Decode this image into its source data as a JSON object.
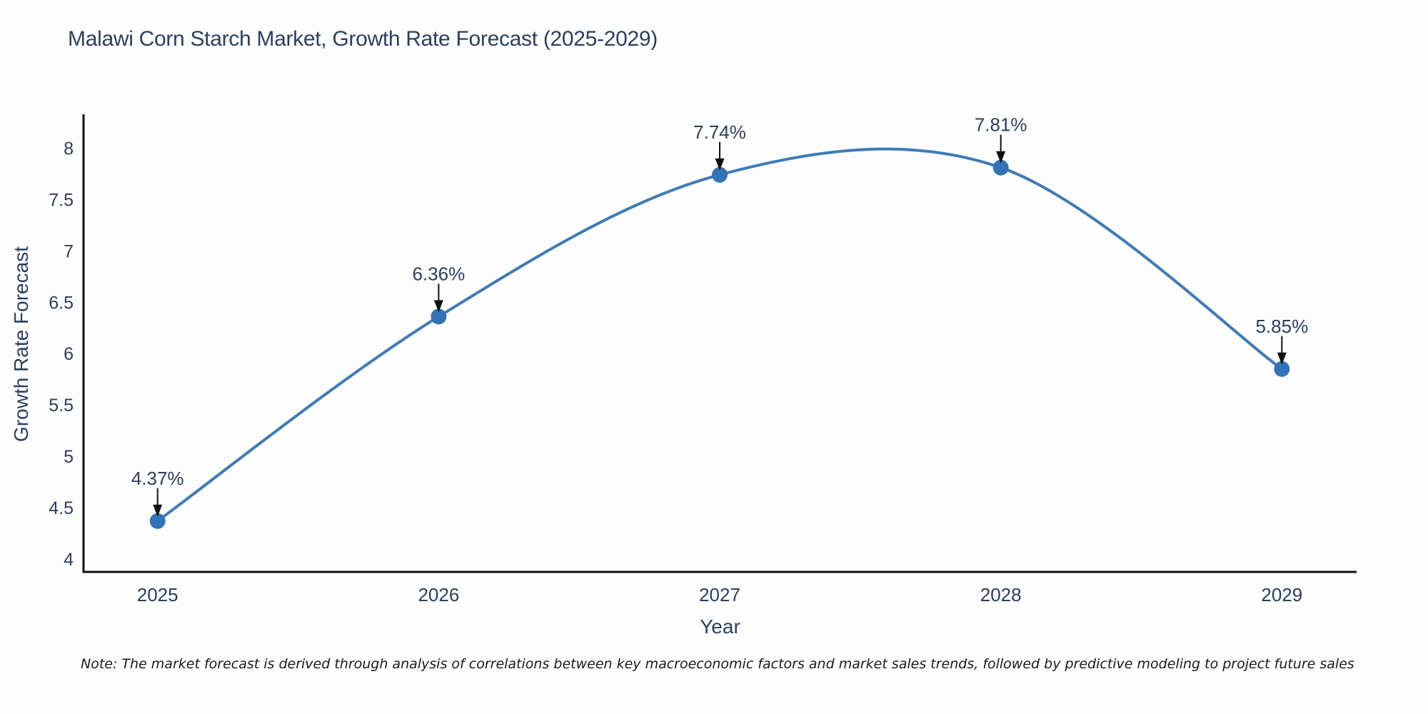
{
  "page": {
    "background_color": "#fdfdfd"
  },
  "chart_data": {
    "type": "line",
    "title": "Malawi Corn Starch Market, Growth Rate Forecast (2025-2029)",
    "xlabel": "Year",
    "ylabel": "Growth Rate Forecast",
    "categories": [
      "2025",
      "2026",
      "2027",
      "2028",
      "2029"
    ],
    "series": [
      {
        "name": "Growth Rate Forecast",
        "values": [
          4.37,
          6.36,
          7.74,
          7.81,
          5.85
        ],
        "point_labels": [
          "4.37%",
          "6.36%",
          "7.74%",
          "7.81%",
          "5.85%"
        ]
      }
    ],
    "y_ticks": [
      {
        "value": 8,
        "label": "8"
      },
      {
        "value": 7.5,
        "label": "7.5"
      },
      {
        "value": 7,
        "label": "7"
      },
      {
        "value": 6.5,
        "label": "6.5"
      },
      {
        "value": 6,
        "label": "6"
      },
      {
        "value": 5.5,
        "label": "5.5"
      },
      {
        "value": 5,
        "label": "5"
      },
      {
        "value": 4.5,
        "label": "4.5"
      },
      {
        "value": 4,
        "label": "4"
      }
    ],
    "ylim": [
      3.87,
      8.35
    ],
    "curve": "spline",
    "grid": false,
    "legend_position": "none",
    "line_color": "#3f7bb6",
    "marker_color": "#3273b5",
    "arrow_color": "#111111",
    "axis_color": "#111111",
    "text_color": "#2a3f5f",
    "note": "Note: The market forecast is derived through analysis of correlations between key macroeconomic factors and market sales trends, followed by predictive modeling to project future sales"
  }
}
